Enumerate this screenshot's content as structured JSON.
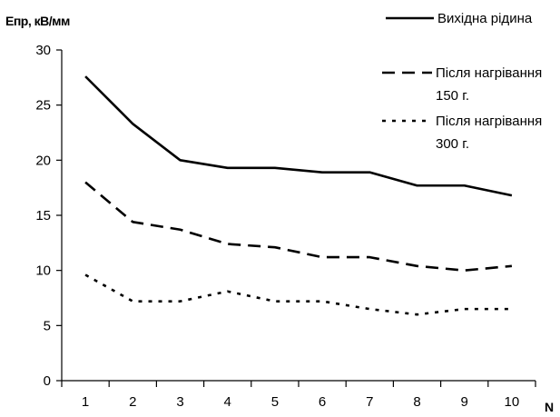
{
  "chart_data": {
    "type": "line",
    "ylabel": "Епр, кВ/мм",
    "xlabel": "N",
    "x": [
      1,
      2,
      3,
      4,
      5,
      6,
      7,
      8,
      9,
      10
    ],
    "xlim": [
      0.5,
      10.5
    ],
    "ylim": [
      0,
      30
    ],
    "yticks": [
      0,
      5,
      10,
      15,
      20,
      25,
      30
    ],
    "xticks": [
      1,
      2,
      3,
      4,
      5,
      6,
      7,
      8,
      9,
      10
    ],
    "grid": false,
    "legend_position": "top-right",
    "series": [
      {
        "name": "Вихідна рідина",
        "label_lines": [
          "Вихідна рідина"
        ],
        "style": "solid",
        "color": "#000000",
        "values": [
          27.6,
          23.3,
          20.0,
          19.3,
          19.3,
          18.9,
          18.9,
          17.7,
          17.7,
          16.8
        ]
      },
      {
        "name": "Після нагрівання 150 г.",
        "label_lines": [
          "Після нагрівання",
          "150 г."
        ],
        "style": "dashed",
        "color": "#000000",
        "values": [
          18.0,
          14.4,
          13.7,
          12.4,
          12.1,
          11.2,
          11.2,
          10.4,
          10.0,
          10.4
        ]
      },
      {
        "name": "Після нагрівання 300 г.",
        "label_lines": [
          "Після нагрівання",
          "300 г."
        ],
        "style": "dotted",
        "color": "#000000",
        "values": [
          9.6,
          7.2,
          7.2,
          8.1,
          7.2,
          7.2,
          6.5,
          6.0,
          6.5,
          6.5
        ]
      }
    ]
  }
}
